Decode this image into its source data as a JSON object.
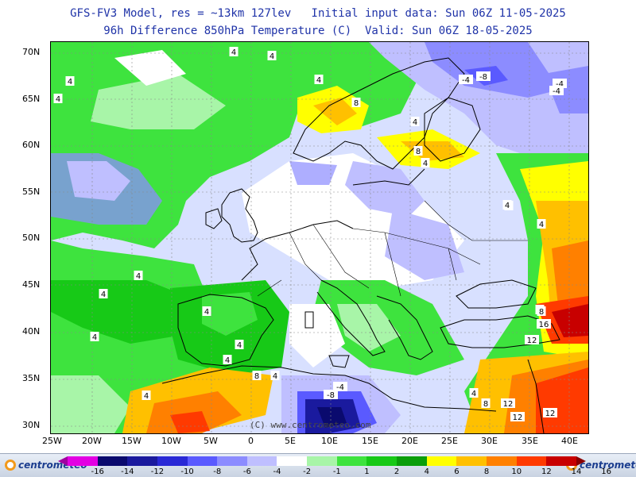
{
  "header": {
    "line1": "GFS-FV3 Model, res = ~13km 127lev   Initial input data: Sun 06Z 11-05-2025",
    "line2": "96h Difference 850hPa Temperature (C)  Valid: Sun 06Z 18-05-2025"
  },
  "axes": {
    "lat_labels": [
      "70N",
      "65N",
      "60N",
      "55N",
      "50N",
      "45N",
      "40N",
      "35N",
      "30N"
    ],
    "lon_labels": [
      "25W",
      "20W",
      "15W",
      "10W",
      "5W",
      "0",
      "5E",
      "10E",
      "15E",
      "20E",
      "25E",
      "30E",
      "35E",
      "40E"
    ]
  },
  "watermark": "(C) www.centrometeo.com",
  "legend": {
    "ticks": [
      "-16",
      "-14",
      "-12",
      "-10",
      "-8",
      "-6",
      "-4",
      "-2",
      "-1",
      "1",
      "2",
      "4",
      "6",
      "8",
      "10",
      "12",
      "14",
      "16"
    ],
    "colors": [
      "#a100a1",
      "#e300e3",
      "#0a0a6e",
      "#1a1a9e",
      "#2929d6",
      "#5a5aff",
      "#8c8cff",
      "#bfbfff",
      "#ffffff",
      "#a8f5a8",
      "#3ee33e",
      "#17c917",
      "#0a9e0a",
      "#ffff00",
      "#ffc000",
      "#ff8000",
      "#ff3a00",
      "#c80000",
      "#8a0000"
    ]
  },
  "logos": {
    "left": "centrometeo",
    "right": "centrometeo"
  },
  "contour_labels": [
    {
      "text": "4"
    },
    {
      "text": "4"
    },
    {
      "text": "4"
    },
    {
      "text": "4"
    },
    {
      "text": "-4"
    },
    {
      "text": "-8"
    },
    {
      "text": "-4"
    },
    {
      "text": "-4"
    },
    {
      "text": "8"
    },
    {
      "text": "4"
    },
    {
      "text": "4"
    },
    {
      "text": "8"
    },
    {
      "text": "4"
    },
    {
      "text": "4"
    },
    {
      "text": "4"
    },
    {
      "text": "4"
    },
    {
      "text": "8"
    },
    {
      "text": "4"
    },
    {
      "text": "4"
    },
    {
      "text": "4"
    },
    {
      "text": "4"
    },
    {
      "text": "4"
    },
    {
      "text": "8"
    },
    {
      "text": "16"
    },
    {
      "text": "12"
    },
    {
      "text": "4"
    },
    {
      "text": "8"
    },
    {
      "text": "4"
    },
    {
      "text": "4"
    },
    {
      "text": "-8"
    },
    {
      "text": "-4"
    },
    {
      "text": "4"
    },
    {
      "text": "8"
    },
    {
      "text": "12"
    },
    {
      "text": "12"
    },
    {
      "text": "12"
    }
  ]
}
